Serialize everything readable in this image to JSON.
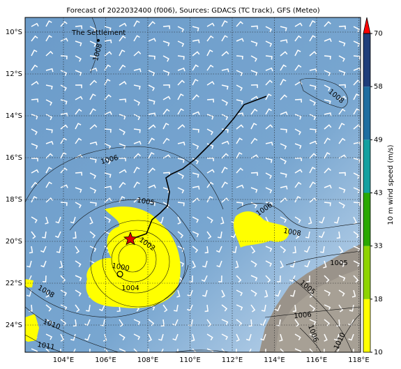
{
  "title": "Forecast of 2022032400 (f006), Sources: GDACS (TC track), GFS (Meteo)",
  "place": "The Settlement",
  "lon_labels": [
    "104°E",
    "106°E",
    "108°E",
    "110°E",
    "112°E",
    "114°E",
    "116°E",
    "118°E"
  ],
  "lat_labels": [
    "10°S",
    "12°S",
    "14°S",
    "16°S",
    "18°S",
    "20°S",
    "22°S",
    "24°S"
  ],
  "contour_labels": [
    "1008",
    "1008",
    "1006",
    "1005",
    "1002",
    "1000",
    "1004",
    "1008",
    "1010",
    "1011",
    "1006",
    "1008",
    "1005",
    "1005",
    "1006",
    "1006",
    "1010"
  ],
  "colorbar": {
    "label": "10 m wind speed (m/s)",
    "ticks": [
      10,
      18,
      33,
      43,
      49,
      58,
      70
    ],
    "colors": [
      "#ffff00",
      "#8ed400",
      "#2aa800",
      "#14a0a0",
      "#1f6ea0",
      "#1f3e7a"
    ],
    "extend_color": "#ff0000"
  }
}
